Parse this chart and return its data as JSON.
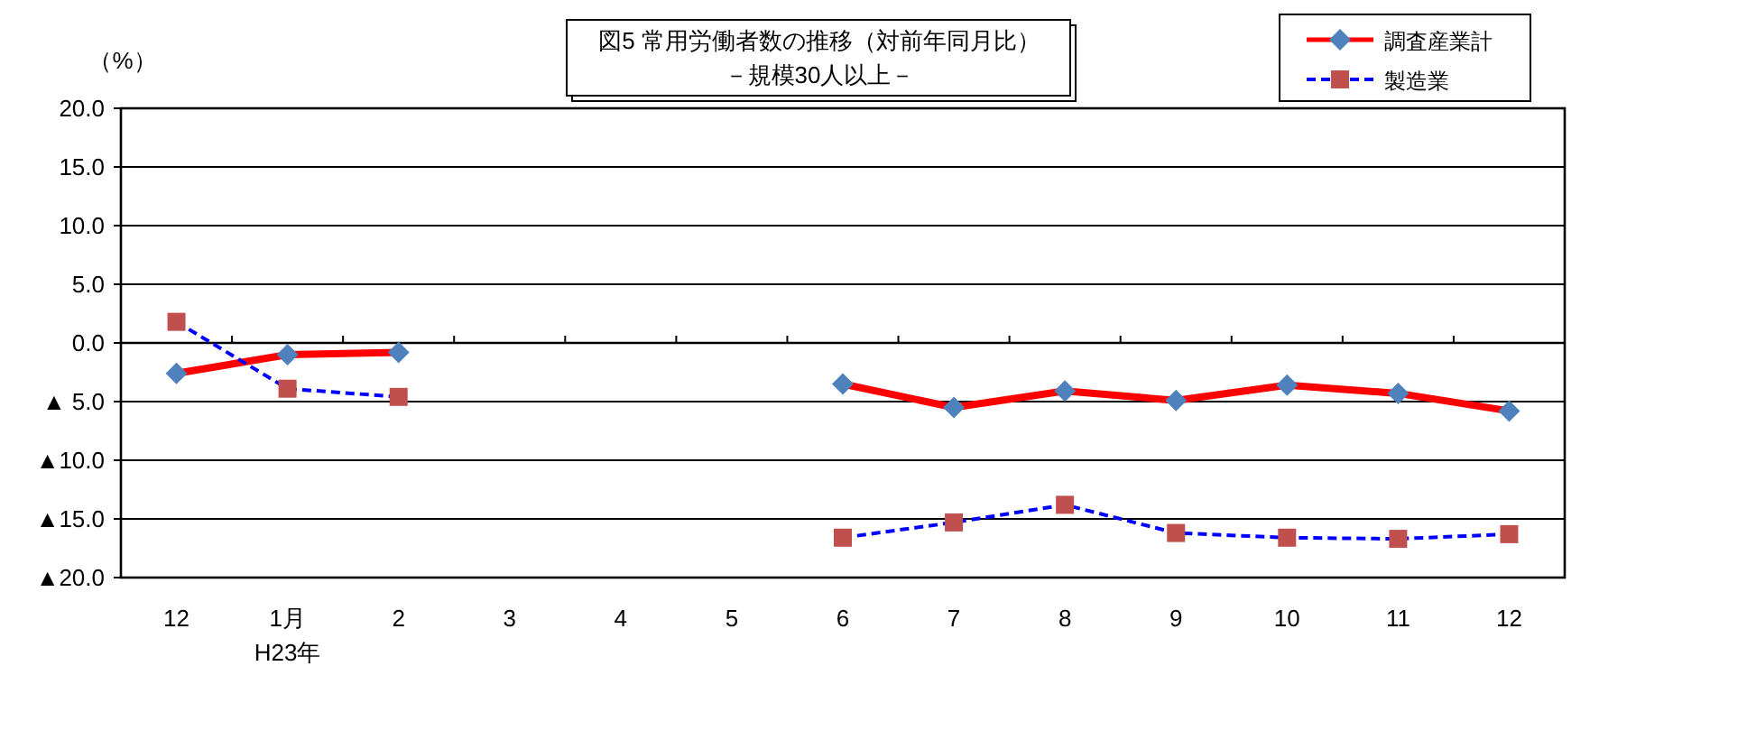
{
  "chart_data": {
    "type": "line",
    "title": "図5 常用労働者数の推移（対前年同月比）",
    "subtitle": "－規模30人以上－",
    "ylabel": "（%）",
    "categories": [
      "12",
      "1月\nH23年",
      "2",
      "3",
      "4",
      "5",
      "6",
      "7",
      "8",
      "9",
      "10",
      "11",
      "12"
    ],
    "series": [
      {
        "name": "調査産業計",
        "color": "#ff0000",
        "line_style": "solid",
        "marker": "diamond",
        "colors": [
          "#4f81bd",
          "#4f81bd",
          "#4f81bd",
          null,
          null,
          null,
          "#4f81bd",
          "#4f81bd",
          "#4f81bd",
          "#4f81bd",
          "#4f81bd",
          "#4f81bd",
          "#4f81bd"
        ],
        "values": [
          -2.6,
          -1.0,
          -0.8,
          null,
          null,
          null,
          -3.5,
          -5.5,
          -4.1,
          -4.9,
          -3.6,
          -4.3,
          -5.8
        ]
      },
      {
        "name": "製造業",
        "color": "#0000ff",
        "line_style": "dashed",
        "marker": "square",
        "colors": [
          "#c0504d",
          "#c0504d",
          "#c0504d",
          null,
          null,
          null,
          "#c0504d",
          "#c0504d",
          "#c0504d",
          "#c0504d",
          "#c0504d",
          "#c0504d",
          "#c0504d"
        ],
        "values": [
          1.8,
          -3.9,
          -4.6,
          null,
          null,
          null,
          -16.6,
          -15.3,
          -13.8,
          -16.2,
          -16.6,
          -16.7,
          -16.3
        ]
      }
    ],
    "ylim": [
      -20,
      20
    ],
    "yticks": [
      {
        "value": 20,
        "label": "20.0"
      },
      {
        "value": 15,
        "label": "15.0"
      },
      {
        "value": 10,
        "label": "10.0"
      },
      {
        "value": 5,
        "label": "5.0"
      },
      {
        "value": 0,
        "label": "0.0"
      },
      {
        "value": -5,
        "label": "▲ 5.0"
      },
      {
        "value": -10,
        "label": "▲10.0"
      },
      {
        "value": -15,
        "label": "▲15.0"
      },
      {
        "value": -20,
        "label": "▲20.0"
      }
    ],
    "grid": "y",
    "legend": "top right"
  }
}
